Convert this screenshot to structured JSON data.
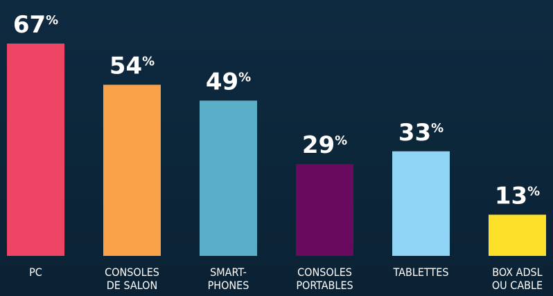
{
  "chart_data": {
    "type": "bar",
    "categories": [
      "PC",
      "CONSOLES\nDE SALON",
      "SMART-\nPHONES",
      "CONSOLES\nPORTABLES",
      "TABLETTES",
      "BOX ADSL\nOU CABLE"
    ],
    "values": [
      67,
      54,
      49,
      29,
      33,
      13
    ],
    "value_labels": [
      "67%",
      "54%",
      "49%",
      "29%",
      "33%",
      "13%"
    ],
    "colors": [
      "#ef4565",
      "#f9a24a",
      "#5aaec8",
      "#6a0a5f",
      "#8fd3f5",
      "#fce02a"
    ],
    "ylim": [
      0,
      80
    ]
  }
}
